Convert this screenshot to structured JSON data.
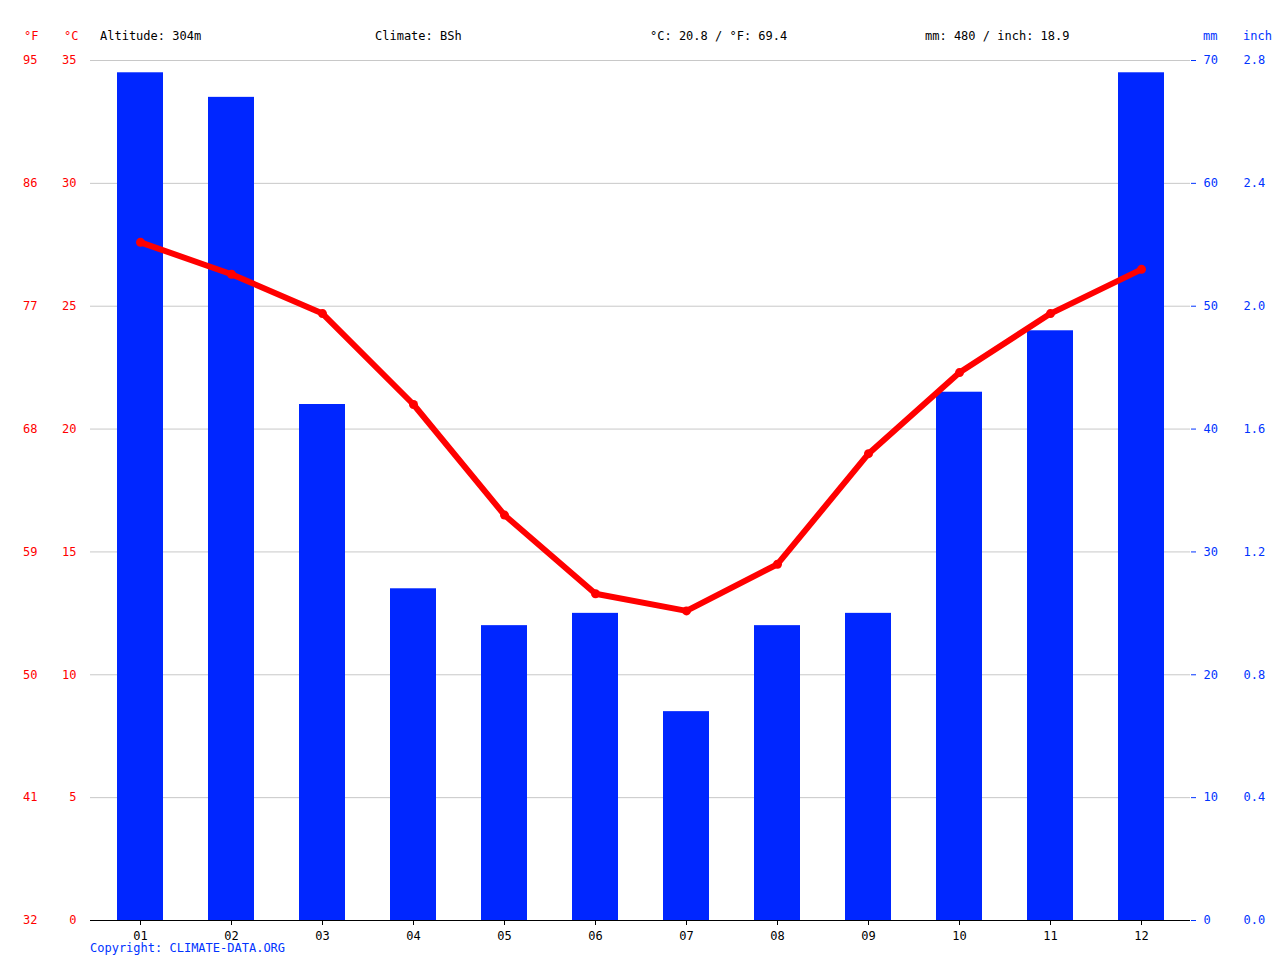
{
  "chart_data": {
    "type": "bar",
    "header": {
      "altitude": "Altitude: 304m",
      "climate": "Climate: BSh",
      "temp_mean": "°C: 20.8 / °F: 69.4",
      "precip_total": "mm: 480 / inch: 18.9"
    },
    "y_unit_labels": [
      "°F",
      "°C"
    ],
    "y2_unit_labels": [
      "mm",
      "inch"
    ],
    "caption": "Copyright: CLIMATE-DATA.ORG",
    "categories": [
      "01",
      "02",
      "03",
      "04",
      "05",
      "06",
      "07",
      "08",
      "09",
      "10",
      "11",
      "12"
    ],
    "series": [
      {
        "type": "bar",
        "axis": "y2",
        "color": "#0026ff",
        "values": [
          69,
          67,
          42,
          27,
          24,
          25,
          17,
          24,
          25,
          43,
          48,
          69
        ]
      },
      {
        "type": "line",
        "axis": "y",
        "color": "#ff0000",
        "marker": "circle",
        "values": [
          27.6,
          26.3,
          24.7,
          21.0,
          16.5,
          13.3,
          12.6,
          14.5,
          19.0,
          22.3,
          24.7,
          26.5
        ]
      }
    ],
    "ylim": [
      0,
      35
    ],
    "yticks": [
      0,
      5,
      10,
      15,
      20,
      25,
      30,
      35
    ],
    "yticks_f": [
      {
        "value": 0,
        "label": "32"
      },
      {
        "value": 5,
        "label": "41"
      },
      {
        "value": 10,
        "label": "50"
      },
      {
        "value": 15,
        "label": "59"
      },
      {
        "value": 20,
        "label": "68"
      },
      {
        "value": 25,
        "label": "77"
      },
      {
        "value": 30,
        "label": "86"
      },
      {
        "value": 35,
        "label": "95"
      }
    ],
    "y2lim": [
      0,
      70
    ],
    "y2ticks": [
      0,
      10,
      20,
      30,
      40,
      50,
      60,
      70
    ],
    "y2ticks_inch": [
      {
        "value": 0,
        "label": "0.0"
      },
      {
        "value": 10,
        "label": "0.4"
      },
      {
        "value": 20,
        "label": "0.8"
      },
      {
        "value": 30,
        "label": "1.2"
      },
      {
        "value": 40,
        "label": "1.6"
      },
      {
        "value": 50,
        "label": "2.0"
      },
      {
        "value": 60,
        "label": "2.4"
      },
      {
        "value": 70,
        "label": "2.8"
      }
    ],
    "grid": true
  }
}
